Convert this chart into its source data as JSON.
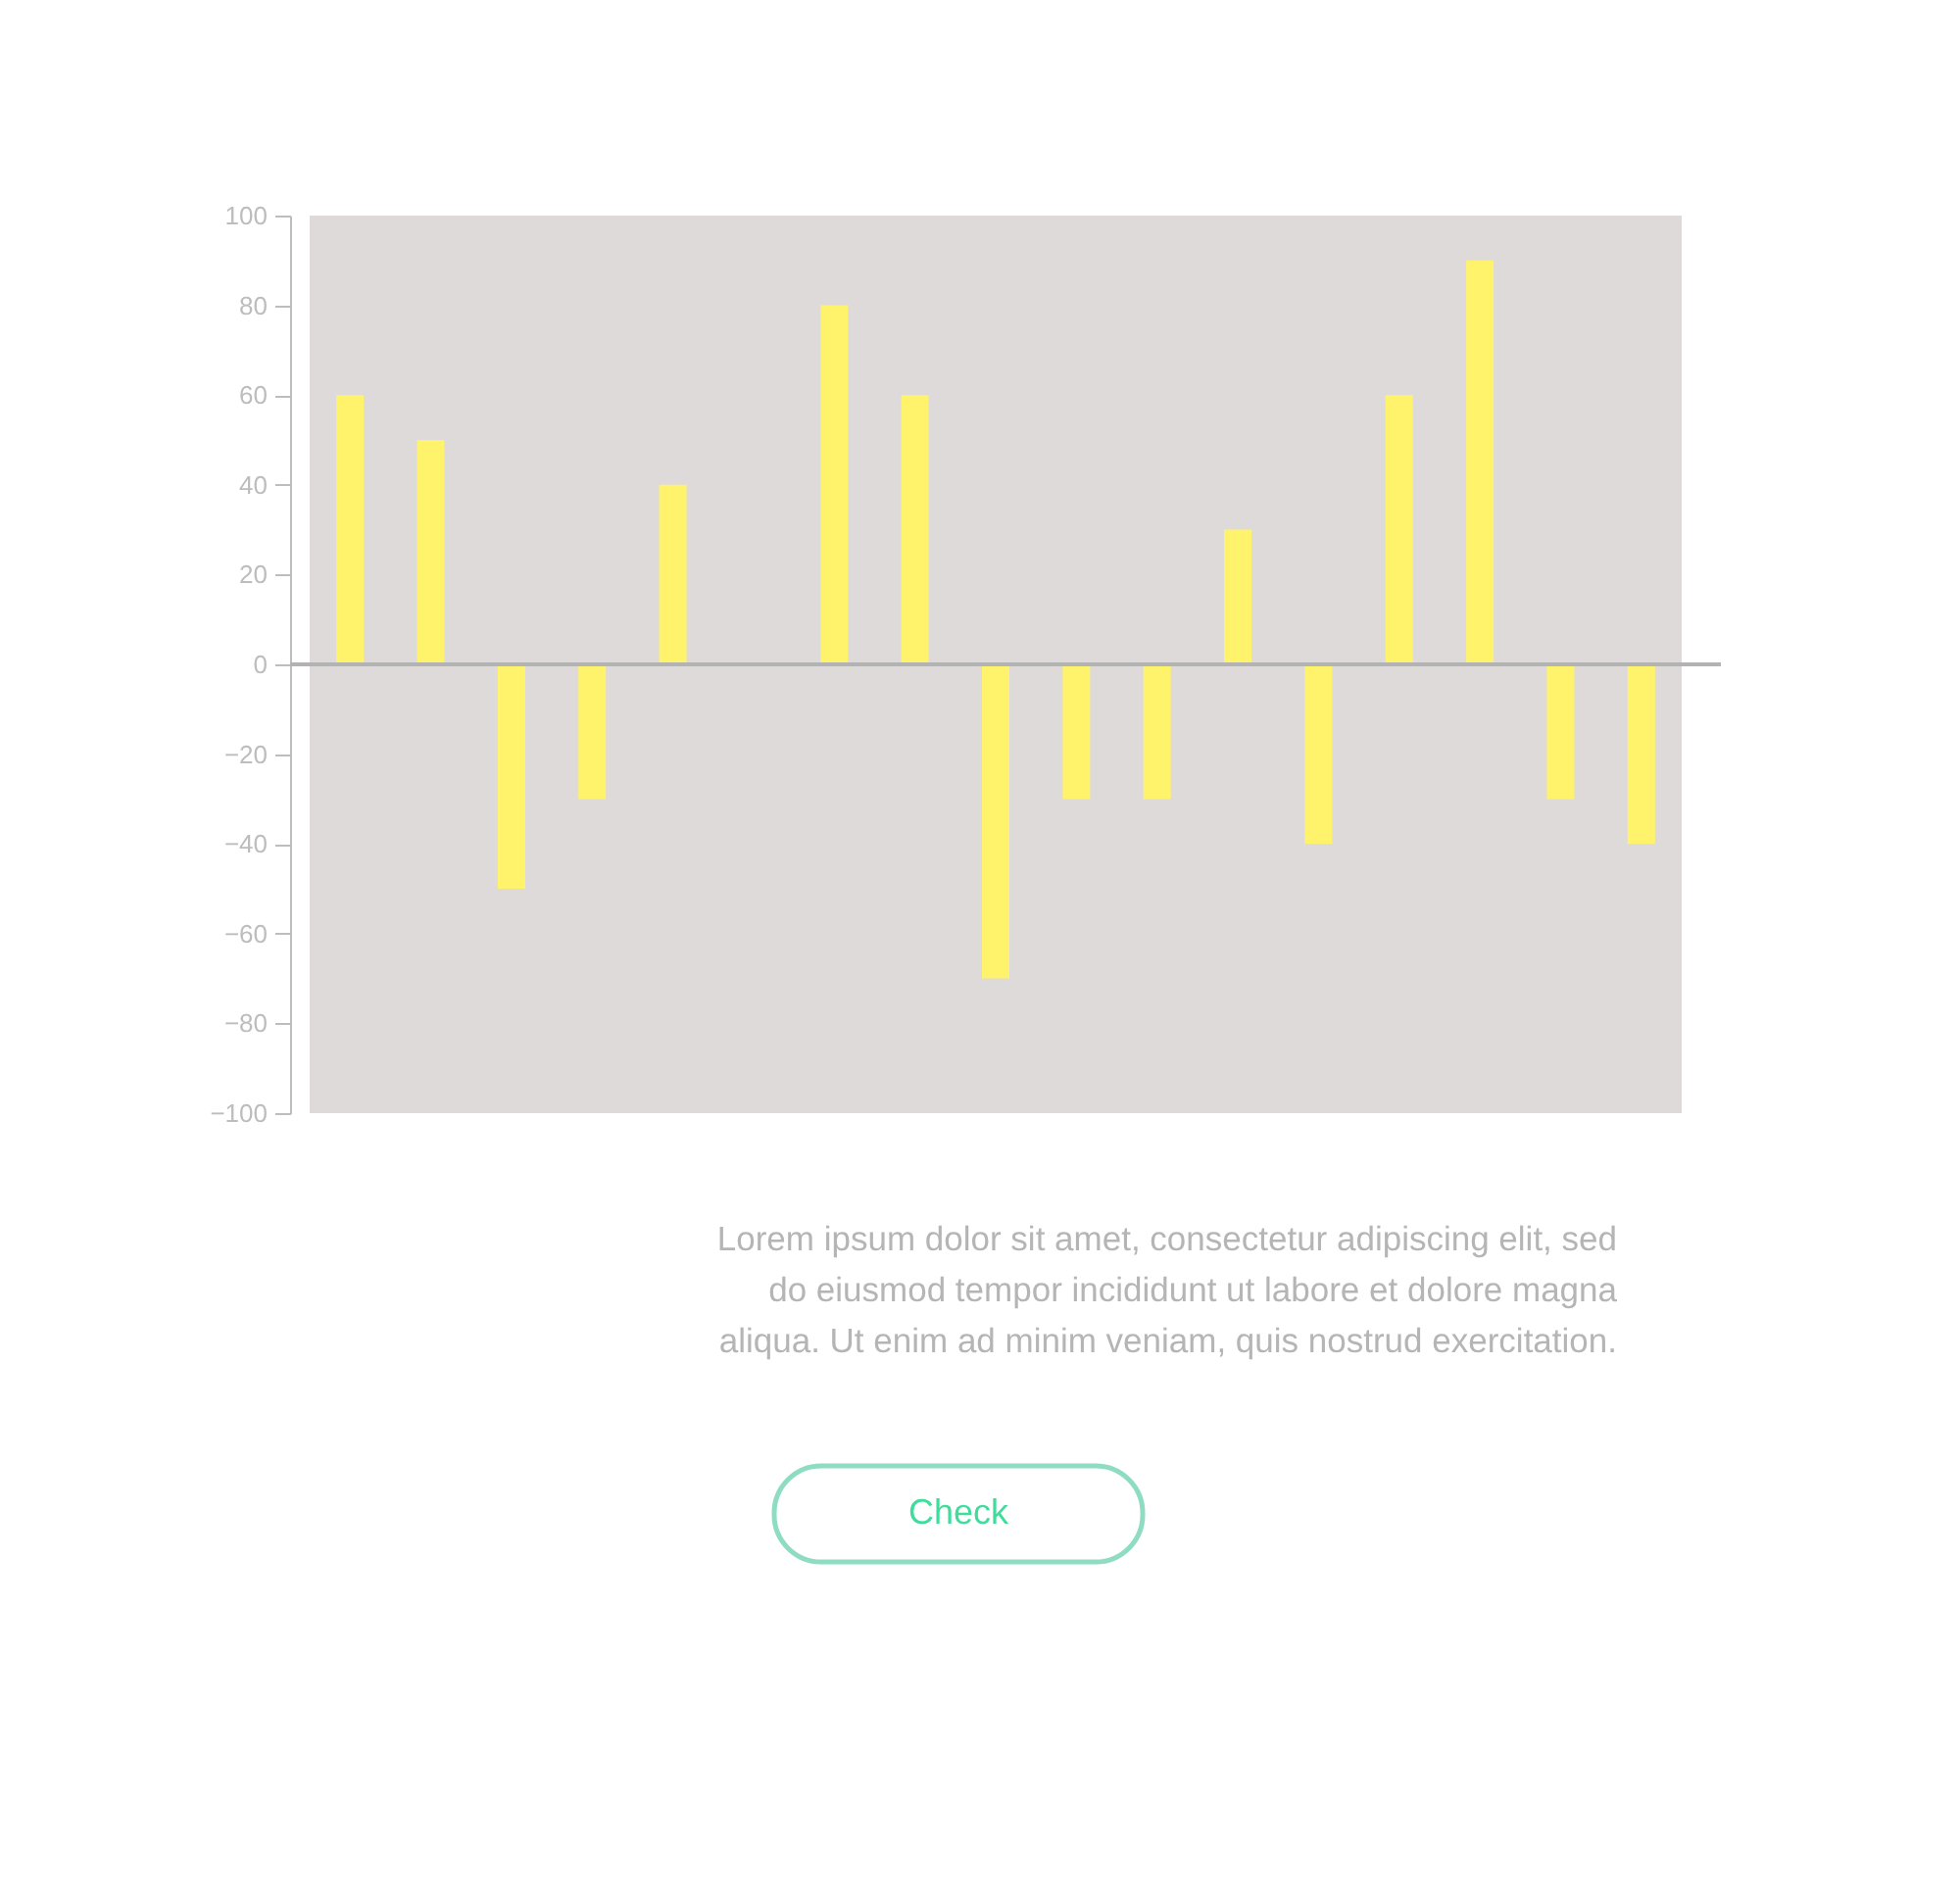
{
  "chart_data": {
    "type": "bar",
    "categories": [
      null,
      null,
      null,
      null,
      null,
      null,
      null,
      null,
      null,
      null,
      null,
      null,
      null,
      null,
      null,
      null,
      null
    ],
    "values": [
      60,
      50,
      -50,
      -30,
      40,
      null,
      80,
      60,
      -70,
      -30,
      -30,
      30,
      -40,
      60,
      90,
      -30,
      -40
    ],
    "color": "#fff36b",
    "ylim": [
      -100,
      100
    ],
    "yticks": [
      -100,
      -80,
      -60,
      -40,
      -20,
      0,
      20,
      40,
      60,
      80,
      100
    ],
    "grid": false,
    "ref_lines": [
      {
        "axis": "y",
        "value": 0,
        "color": "#b3b3b3"
      }
    ],
    "annotations": [
      "Lorem ipsum dolor sit amet, consectetur adipiscing elit, sed",
      "do eiusmod tempor incididunt ut labore et dolore magna",
      "aliqua. Ut enim ad minim veniam, quis nostrud exercitation.",
      "Check"
    ]
  }
}
